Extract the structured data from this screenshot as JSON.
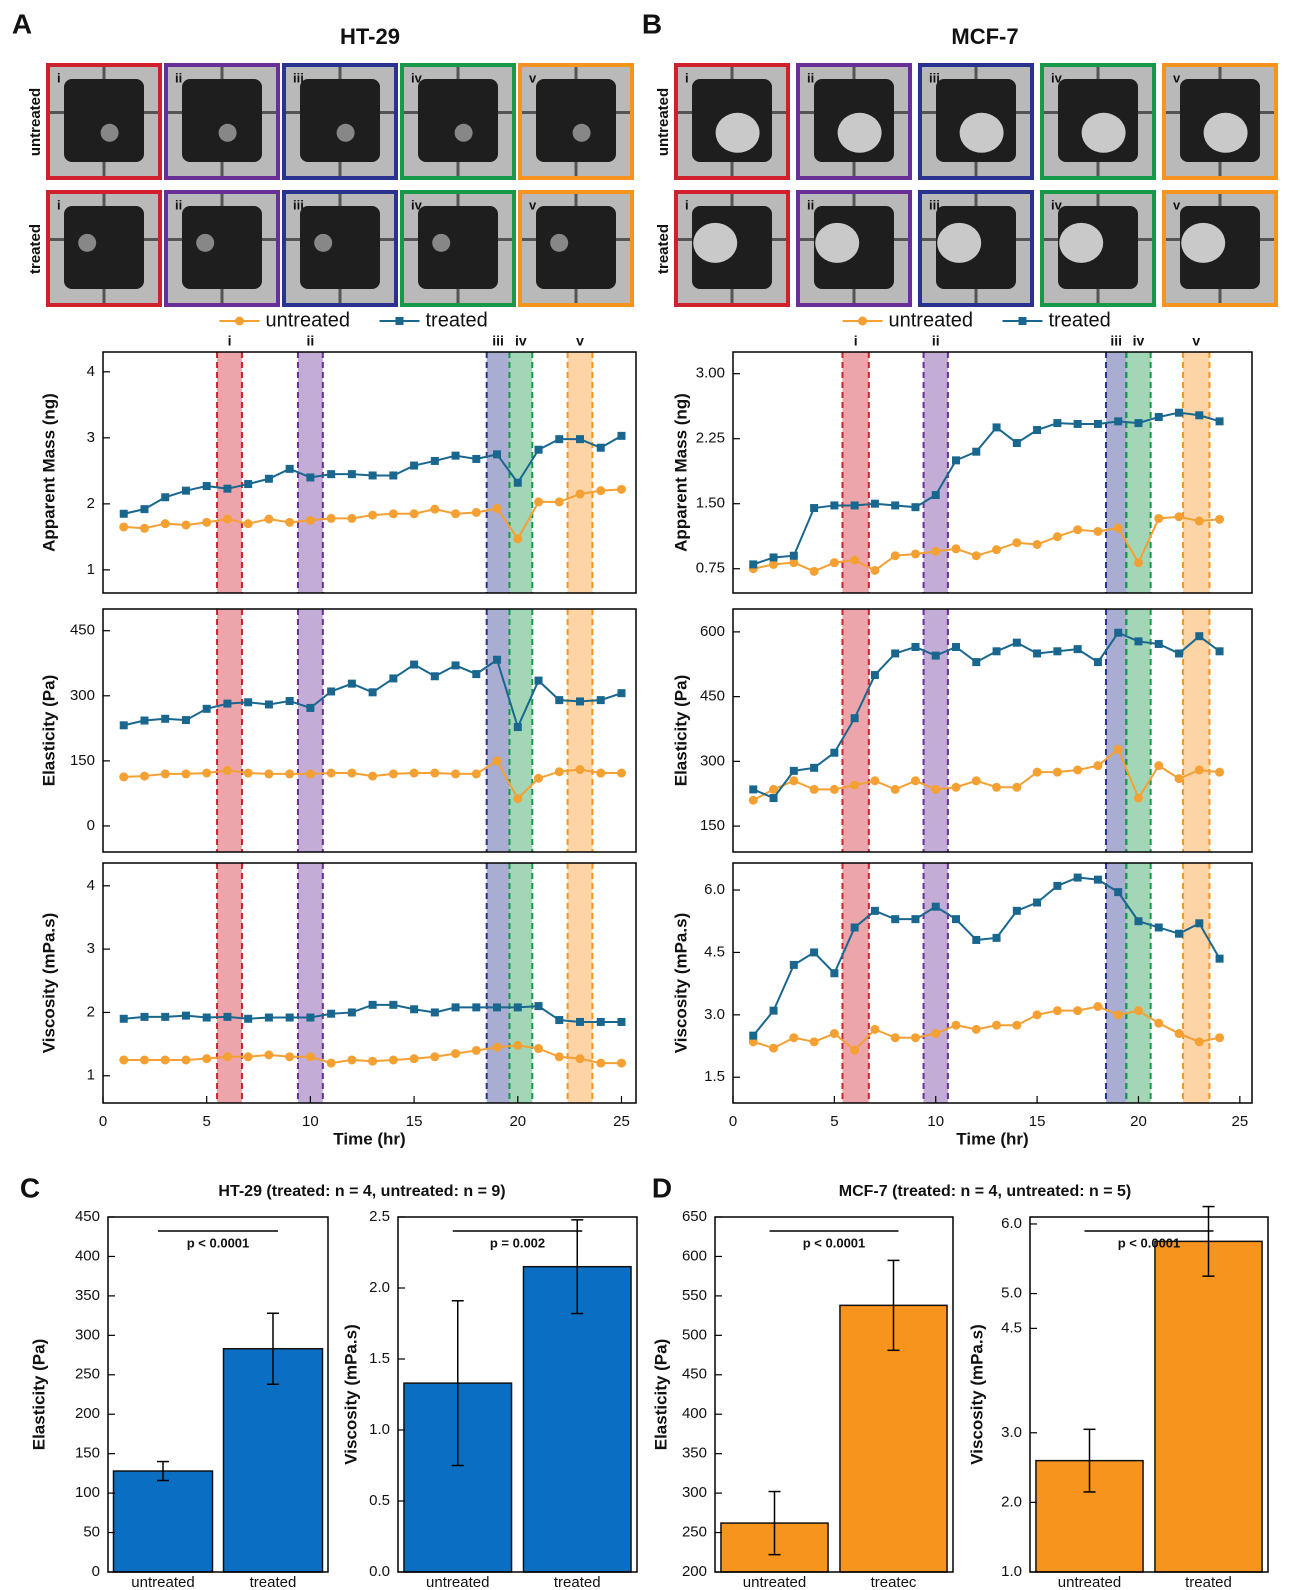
{
  "panel_labels": [
    "A",
    "B",
    "C",
    "D"
  ],
  "image_panels": [
    {
      "title": "HT-29",
      "row_labels": [
        "untreated",
        "treated"
      ],
      "frame_labels": [
        "i",
        "ii",
        "iii",
        "iv",
        "v"
      ],
      "frame_colors": [
        "#d0202e",
        "#6a2f96",
        "#29338f",
        "#17994a",
        "#f7941d"
      ]
    },
    {
      "title": "MCF-7",
      "row_labels": [
        "untreated",
        "treated"
      ],
      "frame_labels": [
        "i",
        "ii",
        "iii",
        "iv",
        "v"
      ],
      "frame_colors": [
        "#d0202e",
        "#6a2f96",
        "#29338f",
        "#17994a",
        "#f7941d"
      ]
    }
  ],
  "chart_data": [
    {
      "type": "line",
      "ylabel": "Apparent Mass (ng)",
      "legend": "top",
      "xlim": [
        0,
        25.7
      ],
      "ylim": [
        0.65,
        4.3
      ],
      "yticks": [
        1,
        2,
        3,
        4
      ],
      "x": [
        1,
        2,
        3,
        4,
        5,
        6,
        7,
        8,
        9,
        10,
        11,
        12,
        13,
        14,
        15,
        16,
        17,
        18,
        19,
        20,
        21,
        22,
        23,
        24,
        25
      ],
      "bands": [
        {
          "label": "i",
          "x": [
            5.5,
            6.7
          ],
          "color": "#d0202e"
        },
        {
          "label": "ii",
          "x": [
            9.4,
            10.6
          ],
          "color": "#6a2f96"
        },
        {
          "label": "iii",
          "x": [
            18.5,
            19.6
          ],
          "color": "#29338f"
        },
        {
          "label": "iv",
          "x": [
            19.6,
            20.7
          ],
          "color": "#17994a"
        },
        {
          "label": "v",
          "x": [
            22.4,
            23.6
          ],
          "color": "#f7941d"
        }
      ],
      "series": [
        {
          "name": "untreated",
          "color": "#f5a033",
          "marker": "circle",
          "values": [
            1.65,
            1.63,
            1.7,
            1.68,
            1.72,
            1.77,
            1.7,
            1.77,
            1.72,
            1.75,
            1.78,
            1.78,
            1.83,
            1.85,
            1.85,
            1.92,
            1.85,
            1.87,
            1.93,
            1.47,
            2.03,
            2.03,
            2.15,
            2.2,
            2.22
          ]
        },
        {
          "name": "treated",
          "color": "#19678f",
          "marker": "square",
          "values": [
            1.85,
            1.92,
            2.1,
            2.2,
            2.27,
            2.23,
            2.3,
            2.38,
            2.53,
            2.4,
            2.45,
            2.45,
            2.43,
            2.43,
            2.58,
            2.65,
            2.73,
            2.68,
            2.75,
            2.32,
            2.82,
            2.98,
            2.98,
            2.85,
            3.03
          ]
        }
      ]
    },
    {
      "type": "line",
      "ylabel": "Elasticity (Pa)",
      "xlim": [
        0,
        25.7
      ],
      "ylim": [
        -60,
        500
      ],
      "yticks": [
        0,
        150,
        300,
        450
      ],
      "x": [
        1,
        2,
        3,
        4,
        5,
        6,
        7,
        8,
        9,
        10,
        11,
        12,
        13,
        14,
        15,
        16,
        17,
        18,
        19,
        20,
        21,
        22,
        23,
        24,
        25
      ],
      "bands": [
        {
          "x": [
            5.5,
            6.7
          ],
          "color": "#d0202e"
        },
        {
          "x": [
            9.4,
            10.6
          ],
          "color": "#6a2f96"
        },
        {
          "x": [
            18.5,
            19.6
          ],
          "color": "#29338f"
        },
        {
          "x": [
            19.6,
            20.7
          ],
          "color": "#17994a"
        },
        {
          "x": [
            22.4,
            23.6
          ],
          "color": "#f7941d"
        }
      ],
      "series": [
        {
          "color": "#f5a033",
          "marker": "circle",
          "values": [
            113,
            115,
            120,
            120,
            122,
            128,
            122,
            120,
            120,
            120,
            122,
            122,
            115,
            120,
            122,
            122,
            120,
            120,
            150,
            63,
            110,
            125,
            130,
            122,
            122
          ]
        },
        {
          "color": "#19678f",
          "marker": "square",
          "values": [
            232,
            243,
            247,
            244,
            270,
            282,
            285,
            280,
            288,
            272,
            310,
            328,
            308,
            340,
            372,
            345,
            370,
            350,
            383,
            228,
            335,
            290,
            287,
            290,
            306
          ]
        }
      ]
    },
    {
      "type": "line",
      "ylabel": "Viscosity (mPa.s)",
      "xlabel": "Time (hr)",
      "xlim": [
        0,
        25.7
      ],
      "xticks": [
        0,
        5,
        10,
        15,
        20,
        25
      ],
      "ylim": [
        0.57,
        4.36
      ],
      "yticks": [
        1,
        2,
        3,
        4
      ],
      "x": [
        1,
        2,
        3,
        4,
        5,
        6,
        7,
        8,
        9,
        10,
        11,
        12,
        13,
        14,
        15,
        16,
        17,
        18,
        19,
        20,
        21,
        22,
        23,
        24,
        25
      ],
      "bands": [
        {
          "x": [
            5.5,
            6.7
          ],
          "color": "#d0202e"
        },
        {
          "x": [
            9.4,
            10.6
          ],
          "color": "#6a2f96"
        },
        {
          "x": [
            18.5,
            19.6
          ],
          "color": "#29338f"
        },
        {
          "x": [
            19.6,
            20.7
          ],
          "color": "#17994a"
        },
        {
          "x": [
            22.4,
            23.6
          ],
          "color": "#f7941d"
        }
      ],
      "series": [
        {
          "color": "#f5a033",
          "marker": "circle",
          "values": [
            1.25,
            1.25,
            1.25,
            1.25,
            1.27,
            1.3,
            1.3,
            1.33,
            1.3,
            1.3,
            1.2,
            1.25,
            1.23,
            1.25,
            1.27,
            1.3,
            1.35,
            1.4,
            1.45,
            1.48,
            1.43,
            1.3,
            1.27,
            1.2,
            1.2
          ]
        },
        {
          "color": "#19678f",
          "marker": "square",
          "values": [
            1.9,
            1.93,
            1.93,
            1.95,
            1.92,
            1.93,
            1.9,
            1.92,
            1.92,
            1.92,
            1.98,
            2.0,
            2.12,
            2.12,
            2.05,
            2.0,
            2.08,
            2.08,
            2.08,
            2.08,
            2.1,
            1.88,
            1.85,
            1.85,
            1.85
          ]
        }
      ]
    },
    {
      "type": "line",
      "ylabel": "Apparent Mass (ng)",
      "legend": "top",
      "xlim": [
        0,
        25.6
      ],
      "ylim": [
        0.47,
        3.25
      ],
      "yticks": [
        0.75,
        {
          "value": 1.5,
          "label": "1.50"
        },
        2.25,
        {
          "value": 3,
          "label": "3.00"
        }
      ],
      "x": [
        1,
        2,
        3,
        4,
        5,
        6,
        7,
        8,
        9,
        10,
        11,
        12,
        13,
        14,
        15,
        16,
        17,
        18,
        19,
        20,
        21,
        22,
        23,
        24
      ],
      "bands": [
        {
          "label": "i",
          "x": [
            5.4,
            6.7
          ],
          "color": "#d0202e"
        },
        {
          "label": "ii",
          "x": [
            9.4,
            10.6
          ],
          "color": "#6a2f96"
        },
        {
          "label": "iii",
          "x": [
            18.4,
            19.4
          ],
          "color": "#29338f"
        },
        {
          "label": "iv",
          "x": [
            19.4,
            20.6
          ],
          "color": "#17994a"
        },
        {
          "label": "v",
          "x": [
            22.2,
            23.5
          ],
          "color": "#f7941d"
        }
      ],
      "series": [
        {
          "name": "untreated",
          "color": "#f5a033",
          "marker": "circle",
          "values": [
            0.75,
            0.8,
            0.82,
            0.72,
            0.82,
            0.85,
            0.73,
            0.9,
            0.92,
            0.95,
            0.98,
            0.9,
            0.97,
            1.05,
            1.03,
            1.12,
            1.2,
            1.18,
            1.22,
            0.82,
            1.33,
            1.35,
            1.3,
            1.32
          ]
        },
        {
          "name": "treated",
          "color": "#19678f",
          "marker": "square",
          "values": [
            0.8,
            0.88,
            0.9,
            1.45,
            1.48,
            1.48,
            1.5,
            1.48,
            1.46,
            1.6,
            2.0,
            2.1,
            2.38,
            2.2,
            2.35,
            2.43,
            2.42,
            2.42,
            2.45,
            2.43,
            2.5,
            2.55,
            2.52,
            2.45
          ]
        }
      ]
    },
    {
      "type": "line",
      "ylabel": "Elasticity (Pa)",
      "xlim": [
        0,
        25.6
      ],
      "ylim": [
        90,
        653
      ],
      "yticks": [
        150,
        300,
        450,
        600
      ],
      "x": [
        1,
        2,
        3,
        4,
        5,
        6,
        7,
        8,
        9,
        10,
        11,
        12,
        13,
        14,
        15,
        16,
        17,
        18,
        19,
        20,
        21,
        22,
        23,
        24
      ],
      "bands": [
        {
          "x": [
            5.4,
            6.7
          ],
          "color": "#d0202e"
        },
        {
          "x": [
            9.4,
            10.6
          ],
          "color": "#6a2f96"
        },
        {
          "x": [
            18.4,
            19.4
          ],
          "color": "#29338f"
        },
        {
          "x": [
            19.4,
            20.6
          ],
          "color": "#17994a"
        },
        {
          "x": [
            22.2,
            23.5
          ],
          "color": "#f7941d"
        }
      ],
      "series": [
        {
          "color": "#f5a033",
          "marker": "circle",
          "values": [
            210,
            235,
            255,
            235,
            235,
            245,
            255,
            235,
            255,
            235,
            240,
            255,
            240,
            240,
            275,
            275,
            280,
            290,
            328,
            215,
            290,
            260,
            280,
            275
          ]
        },
        {
          "color": "#19678f",
          "marker": "square",
          "values": [
            235,
            215,
            278,
            285,
            320,
            400,
            500,
            550,
            565,
            545,
            565,
            530,
            555,
            575,
            550,
            555,
            560,
            530,
            598,
            578,
            572,
            550,
            590,
            555
          ]
        }
      ]
    },
    {
      "type": "line",
      "ylabel": "Viscosity (mPa.s)",
      "xlabel": "Time (hr)",
      "xlim": [
        0,
        25.6
      ],
      "xticks": [
        0,
        5,
        10,
        15,
        20,
        25
      ],
      "ylim": [
        0.88,
        6.65
      ],
      "yticks": [
        1.5,
        {
          "value": 3,
          "label": "3.0"
        },
        4.5,
        {
          "value": 6,
          "label": "6.0"
        }
      ],
      "x": [
        1,
        2,
        3,
        4,
        5,
        6,
        7,
        8,
        9,
        10,
        11,
        12,
        13,
        14,
        15,
        16,
        17,
        18,
        19,
        20,
        21,
        22,
        23,
        24
      ],
      "bands": [
        {
          "x": [
            5.4,
            6.7
          ],
          "color": "#d0202e"
        },
        {
          "x": [
            9.4,
            10.6
          ],
          "color": "#6a2f96"
        },
        {
          "x": [
            18.4,
            19.4
          ],
          "color": "#29338f"
        },
        {
          "x": [
            19.4,
            20.6
          ],
          "color": "#17994a"
        },
        {
          "x": [
            22.2,
            23.5
          ],
          "color": "#f7941d"
        }
      ],
      "series": [
        {
          "color": "#f5a033",
          "marker": "circle",
          "values": [
            2.35,
            2.2,
            2.45,
            2.35,
            2.55,
            2.15,
            2.65,
            2.45,
            2.45,
            2.55,
            2.75,
            2.65,
            2.75,
            2.75,
            3.0,
            3.1,
            3.1,
            3.2,
            3.0,
            3.1,
            2.8,
            2.55,
            2.35,
            2.45
          ]
        },
        {
          "color": "#19678f",
          "marker": "square",
          "values": [
            2.5,
            3.1,
            4.2,
            4.5,
            4.0,
            5.1,
            5.5,
            5.3,
            5.3,
            5.6,
            5.3,
            4.8,
            4.85,
            5.5,
            5.7,
            6.1,
            6.3,
            6.25,
            5.95,
            5.25,
            5.1,
            4.95,
            5.2,
            4.35
          ]
        }
      ]
    },
    {
      "type": "bar",
      "title": "HT-29 (treated: n = 4, untreated: n = 9)",
      "ylabel": "Elasticity (Pa)",
      "categories": [
        "untreated",
        "treated"
      ],
      "values": [
        128,
        283
      ],
      "errors": [
        12,
        45
      ],
      "color": "#0a6fc2",
      "ylim": [
        0,
        450
      ],
      "yticks": [
        0,
        50,
        100,
        150,
        200,
        250,
        300,
        350,
        400,
        450
      ],
      "annotation": "p < 0.0001"
    },
    {
      "type": "bar",
      "ylabel": "Viscosity (mPa.s)",
      "categories": [
        "untreated",
        "treated"
      ],
      "values": [
        1.33,
        2.15
      ],
      "errors": [
        0.58,
        0.33
      ],
      "color": "#0a6fc2",
      "ylim": [
        0,
        2.5
      ],
      "yticks": [
        {
          "value": 0,
          "label": "0.0"
        },
        0.5,
        {
          "value": 1,
          "label": "1.0"
        },
        1.5,
        {
          "value": 2,
          "label": "2.0"
        },
        2.5
      ],
      "annotation": "p =  0.002"
    },
    {
      "type": "bar",
      "title": "MCF-7 (treated: n = 4, untreated: n = 5)",
      "ylabel": "Elasticity (Pa)",
      "categories": [
        "untreated",
        "treatec"
      ],
      "values": [
        262,
        538
      ],
      "errors": [
        40,
        57
      ],
      "color": "#f7941d",
      "ylim": [
        200,
        650
      ],
      "yticks": [
        200,
        250,
        300,
        350,
        400,
        450,
        500,
        550,
        600,
        650
      ],
      "annotation": "p < 0.0001"
    },
    {
      "type": "bar",
      "ylabel": "Viscosity (mPa.s)",
      "categories": [
        "untreated",
        "treated"
      ],
      "values": [
        2.6,
        5.75
      ],
      "errors": [
        0.45,
        0.5
      ],
      "color": "#f7941d",
      "ylim": [
        1,
        6.1
      ],
      "yticks": [
        {
          "value": 1,
          "label": "1.0"
        },
        {
          "value": 2,
          "label": "2.0"
        },
        {
          "value": 3,
          "label": "3.0"
        },
        4.5,
        {
          "value": 5,
          "label": "5.0"
        },
        {
          "value": 6,
          "label": "6.0"
        }
      ],
      "annotation": "p < 0.0001"
    }
  ]
}
